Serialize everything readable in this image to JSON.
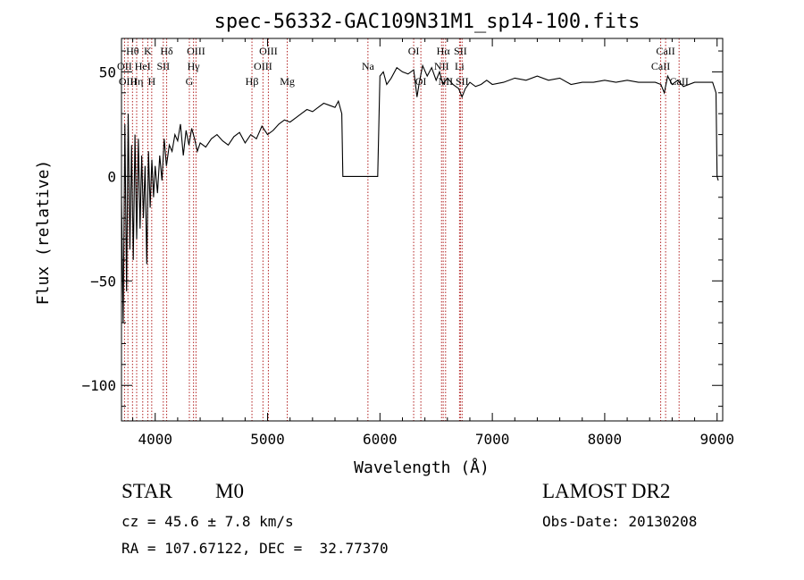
{
  "chart_data": {
    "type": "line",
    "title": "spec-56332-GAC109N31M1_sp14-100.fits",
    "xlabel": "Wavelength (Å)",
    "ylabel": "Flux (relative)",
    "xlim": [
      3700,
      9050
    ],
    "ylim": [
      -117,
      66
    ],
    "xticks": [
      {
        "value": 4000,
        "label": "4000"
      },
      {
        "value": 5000,
        "label": "5000"
      },
      {
        "value": 6000,
        "label": "6000"
      },
      {
        "value": 7000,
        "label": "7000"
      },
      {
        "value": 8000,
        "label": "8000"
      },
      {
        "value": 9000,
        "label": "9000"
      }
    ],
    "yticks": [
      {
        "value": 50,
        "label": "50"
      },
      {
        "value": 0,
        "label": "0"
      },
      {
        "value": -50,
        "label": "−50"
      },
      {
        "value": -100,
        "label": "−100"
      }
    ],
    "grid": false,
    "line_color": "#000000",
    "line_marker_color": "#b22222",
    "series": [
      {
        "x": [
          3700,
          3715,
          3730,
          3745,
          3760,
          3775,
          3790,
          3805,
          3820,
          3835,
          3850,
          3865,
          3880,
          3895,
          3910,
          3925,
          3940,
          3955,
          3970,
          3985,
          4000,
          4020,
          4040,
          4060,
          4080,
          4100,
          4125,
          4150,
          4175,
          4200,
          4225,
          4250,
          4275,
          4300,
          4325,
          4350,
          4375,
          4400,
          4450,
          4500,
          4550,
          4600,
          4650,
          4700,
          4750,
          4800,
          4850,
          4900,
          4950,
          5000,
          5050,
          5100,
          5150,
          5200,
          5250,
          5300,
          5350,
          5400,
          5450,
          5500,
          5550,
          5600,
          5630,
          5660,
          5670,
          5700,
          5800,
          5900,
          5980,
          6000,
          6030,
          6060,
          6100,
          6150,
          6200,
          6250,
          6300,
          6330,
          6350,
          6380,
          6420,
          6460,
          6500,
          6530,
          6560,
          6600,
          6650,
          6700,
          6730,
          6760,
          6800,
          6850,
          6900,
          6950,
          7000,
          7100,
          7200,
          7300,
          7400,
          7500,
          7600,
          7700,
          7800,
          7900,
          8000,
          8100,
          8200,
          8300,
          8400,
          8450,
          8500,
          8530,
          8560,
          8600,
          8650,
          8700,
          8800,
          8900,
          8960,
          8990,
          9000,
          9010
        ],
        "y": [
          -10,
          -70,
          25,
          -55,
          30,
          -35,
          15,
          -40,
          20,
          -30,
          18,
          -25,
          10,
          -20,
          5,
          -42,
          12,
          -15,
          8,
          -10,
          5,
          -8,
          10,
          -2,
          18,
          5,
          15,
          12,
          20,
          17,
          25,
          10,
          22,
          15,
          23,
          18,
          12,
          16,
          14,
          18,
          20,
          17,
          15,
          19,
          21,
          16,
          20,
          18,
          24,
          20,
          22,
          25,
          27,
          26,
          28,
          30,
          32,
          31,
          33,
          35,
          34,
          33,
          36,
          30,
          0,
          0,
          0,
          0,
          0,
          48,
          50,
          44,
          47,
          52,
          50,
          49,
          51,
          38,
          45,
          53,
          48,
          52,
          46,
          50,
          44,
          47,
          44,
          42,
          38,
          42,
          45,
          43,
          44,
          46,
          44,
          45,
          47,
          46,
          48,
          46,
          47,
          44,
          45,
          45,
          46,
          45,
          46,
          45,
          45,
          45,
          44,
          40,
          48,
          44,
          46,
          43,
          45,
          45,
          45,
          40,
          0,
          -2
        ],
        "note_detail": "approximate trace read from figure"
      }
    ],
    "lines": [
      {
        "label": "Hθ",
        "x": 3798,
        "row": 0
      },
      {
        "label": "OII",
        "x": 3727,
        "row": 1
      },
      {
        "label": "OIII",
        "x": 3757,
        "row": 2
      },
      {
        "label": "Hη",
        "x": 3835,
        "row": 2
      },
      {
        "label": "K",
        "x": 3934,
        "row": 0
      },
      {
        "label": "HeI",
        "x": 3889,
        "row": 1
      },
      {
        "label": "SII",
        "x": 4072,
        "row": 1
      },
      {
        "label": "H",
        "x": 3969,
        "row": 2
      },
      {
        "label": "Hδ",
        "x": 4102,
        "row": 0
      },
      {
        "label": "OIII",
        "x": 4363,
        "row": 0
      },
      {
        "label": "Hγ",
        "x": 4341,
        "row": 1
      },
      {
        "label": "G",
        "x": 4304,
        "row": 2
      },
      {
        "label": "OIII",
        "x": 5007,
        "row": 0
      },
      {
        "label": "OIII",
        "x": 4959,
        "row": 1
      },
      {
        "label": "Hβ",
        "x": 4861,
        "row": 2
      },
      {
        "label": "Mg",
        "x": 5175,
        "row": 2
      },
      {
        "label": "Na",
        "x": 5893,
        "row": 1
      },
      {
        "label": "OI",
        "x": 6300,
        "row": 0
      },
      {
        "label": "OI",
        "x": 6364,
        "row": 2
      },
      {
        "label": "Hα",
        "x": 6563,
        "row": 0
      },
      {
        "label": "SII",
        "x": 6716,
        "row": 0
      },
      {
        "label": "NII",
        "x": 6548,
        "row": 1
      },
      {
        "label": "Li",
        "x": 6708,
        "row": 1
      },
      {
        "label": "NII",
        "x": 6584,
        "row": 2
      },
      {
        "label": "SII",
        "x": 6731,
        "row": 2
      },
      {
        "label": "CaII",
        "x": 8542,
        "row": 0
      },
      {
        "label": "CaII",
        "x": 8498,
        "row": 1
      },
      {
        "label": "CaII",
        "x": 8662,
        "row": 2
      }
    ]
  },
  "info": {
    "classification": "STAR",
    "subclass": "M0",
    "redshift": "cz = 45.6 ± 7.8 km/s",
    "coords": "RA = 107.67122, DEC =  32.77370",
    "survey": "LAMOST DR2",
    "obs_date": "Obs-Date: 20130208"
  }
}
